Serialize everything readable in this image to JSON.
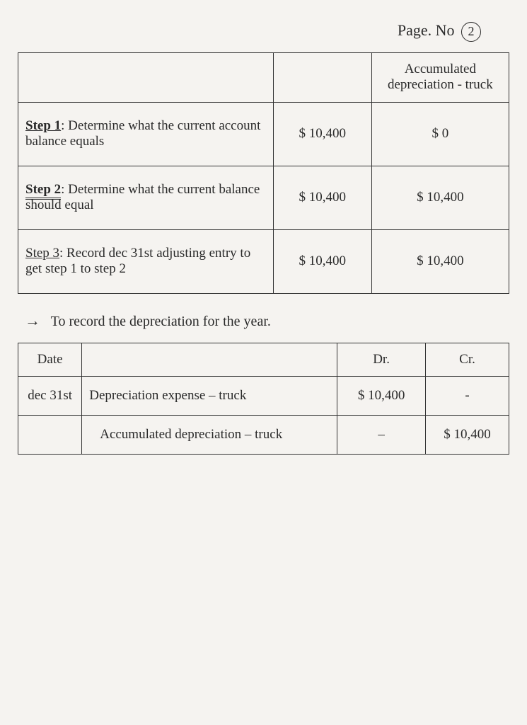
{
  "page": {
    "label": "Page. No",
    "number": "2"
  },
  "table1": {
    "header_col2": "",
    "header_col3": "Accumulated depreciation - truck",
    "rows": [
      {
        "step_prefix": "Step 1",
        "step_text": ": Determine what the current account balance equals",
        "val1": "$ 10,400",
        "val2": "$ 0"
      },
      {
        "step_prefix": "Step 2",
        "step_text": ": Determine what the current balance should equal",
        "val1": "$ 10,400",
        "val2": "$ 10,400"
      },
      {
        "step_prefix": "Step 3",
        "step_text": ": Record dec 31st adjusting entry to get step 1 to step 2",
        "val1": "$ 10,400",
        "val2": "$ 10,400"
      }
    ]
  },
  "note": "To record the depreciation for the year.",
  "table2": {
    "headers": {
      "date": "Date",
      "desc": "",
      "dr": "Dr.",
      "cr": "Cr."
    },
    "rows": [
      {
        "date": "dec 31st",
        "desc": "Depreciation expense – truck",
        "dr": "$ 10,400",
        "cr": "-"
      },
      {
        "date": "",
        "desc": "Accumulated depreciation – truck",
        "dr": "–",
        "cr": "$ 10,400"
      }
    ]
  },
  "styling": {
    "background_color": "#f5f3f0",
    "border_color": "#333333",
    "text_color": "#2a2a2a",
    "font_family": "cursive",
    "base_font_size": 19,
    "border_width": 1.5,
    "table1_col_widths": [
      "52%",
      "20%",
      "28%"
    ],
    "table2_col_widths": [
      "13%",
      "52%",
      "18%",
      "17%"
    ]
  }
}
